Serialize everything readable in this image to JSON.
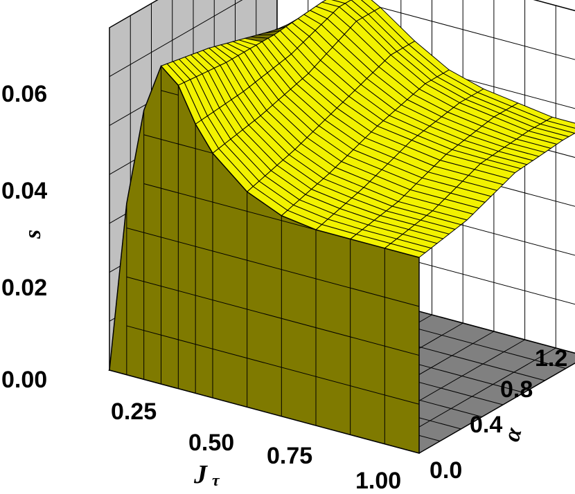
{
  "chart_data": {
    "type": "surface3d",
    "title": "",
    "xlabel": "J",
    "xlabel_sub": "τ",
    "ylabel": "α",
    "zlabel": "s",
    "x_ticks": [
      "0.25",
      "0.50",
      "0.75",
      "1.00"
    ],
    "y_ticks": [
      "0.0",
      "0.4",
      "0.8",
      "1.2"
    ],
    "z_ticks": [
      "0.00",
      "0.02",
      "0.04",
      "0.06"
    ],
    "xlim": [
      0.1,
      1.0
    ],
    "ylim": [
      0.0,
      1.4
    ],
    "zlim": [
      0.0,
      0.07
    ],
    "grid": true,
    "surface_color": "#f2f200",
    "surface_shade_color": "#7f7a00",
    "floor_color": "#808080",
    "back_wall_color": "#c0c0c0",
    "series": [
      {
        "alpha": 0.0,
        "x": [
          0.1,
          0.15,
          0.2,
          0.25,
          0.3,
          0.35,
          0.4,
          0.5,
          0.6,
          0.7,
          0.8,
          0.9,
          1.0
        ],
        "s": [
          0.0,
          0.035,
          0.055,
          0.065,
          0.062,
          0.055,
          0.05,
          0.044,
          0.041,
          0.04,
          0.04,
          0.04,
          0.04
        ]
      },
      {
        "alpha": 0.4,
        "x": [
          0.1,
          0.15,
          0.2,
          0.25,
          0.3,
          0.35,
          0.4,
          0.5,
          0.6,
          0.7,
          0.8,
          0.9,
          1.0
        ],
        "s": [
          0.0,
          0.033,
          0.053,
          0.063,
          0.061,
          0.056,
          0.052,
          0.047,
          0.044,
          0.043,
          0.042,
          0.042,
          0.042
        ]
      },
      {
        "alpha": 0.8,
        "x": [
          0.1,
          0.15,
          0.2,
          0.25,
          0.3,
          0.35,
          0.4,
          0.5,
          0.6,
          0.7,
          0.8,
          0.9,
          1.0
        ],
        "s": [
          0.0,
          0.03,
          0.049,
          0.06,
          0.061,
          0.058,
          0.055,
          0.051,
          0.048,
          0.047,
          0.046,
          0.046,
          0.046
        ]
      },
      {
        "alpha": 1.2,
        "x": [
          0.1,
          0.15,
          0.2,
          0.25,
          0.3,
          0.35,
          0.4,
          0.5,
          0.6,
          0.7,
          0.8,
          0.9,
          1.0
        ],
        "s": [
          0.0,
          0.028,
          0.046,
          0.057,
          0.062,
          0.062,
          0.06,
          0.055,
          0.051,
          0.049,
          0.048,
          0.047,
          0.047
        ]
      }
    ]
  }
}
